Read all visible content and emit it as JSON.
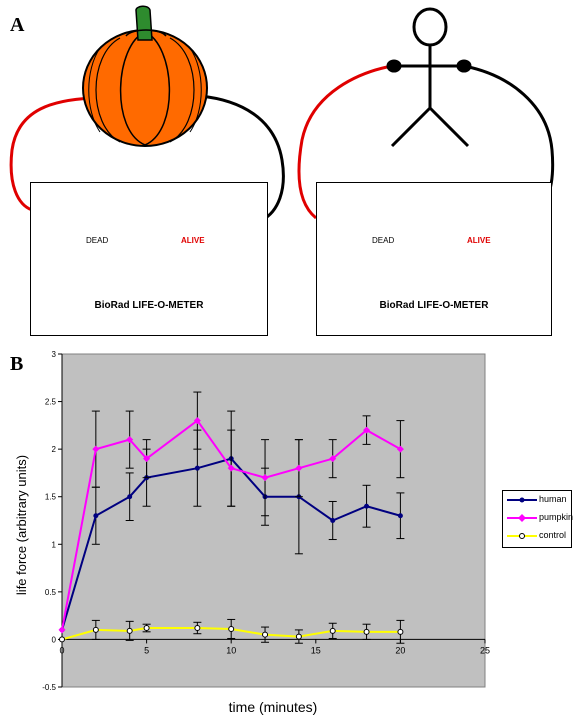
{
  "panels": {
    "a": "A",
    "b": "B"
  },
  "meters": [
    {
      "dead": "DEAD",
      "alive": "ALIVE",
      "caption": "BioRad LIFE-O-METER"
    },
    {
      "dead": "DEAD",
      "alive": "ALIVE",
      "caption": "BioRad LIFE-O-METER"
    }
  ],
  "colors": {
    "human": "#000080",
    "pumpkin": "#ff00ff",
    "control": "#ffff00",
    "plot_bg": "#c0c0c0",
    "wire_red": "#e00000",
    "pumpkin_orange": "#ff6a00"
  },
  "icons": {
    "pumpkin": "pumpkin-icon",
    "stick_figure": "stick-figure-icon"
  },
  "chart_data": {
    "type": "line",
    "xlabel": "time (minutes)",
    "ylabel": "life force (arbitrary units)",
    "xlim": [
      0,
      25
    ],
    "ylim": [
      -0.5,
      3
    ],
    "xticks": [
      "0",
      "5",
      "10",
      "15",
      "20",
      "25"
    ],
    "yticks": [
      "-0.5",
      "0",
      "0.5",
      "1",
      "1.5",
      "2",
      "2.5",
      "3"
    ],
    "grid": false,
    "legend_position": "right",
    "x": [
      0,
      2,
      4,
      5,
      8,
      10,
      12,
      14,
      16,
      18,
      20
    ],
    "series": [
      {
        "name": "human",
        "color": "#000080",
        "marker": "circle",
        "values": [
          0.1,
          1.3,
          1.5,
          1.7,
          1.8,
          1.9,
          1.5,
          1.5,
          1.25,
          1.4,
          1.3
        ],
        "errors": [
          0,
          0.3,
          0.25,
          0.3,
          0.4,
          0.5,
          0.3,
          0.6,
          0.2,
          0.22,
          0.24
        ]
      },
      {
        "name": "pumpkin",
        "color": "#ff00ff",
        "marker": "diamond",
        "values": [
          0.1,
          2.0,
          2.1,
          1.9,
          2.3,
          1.8,
          1.7,
          1.8,
          1.9,
          2.2,
          2.0
        ],
        "errors": [
          0,
          0.4,
          0.3,
          0.2,
          0.3,
          0.4,
          0.4,
          0.3,
          0.2,
          0.15,
          0.3
        ]
      },
      {
        "name": "control",
        "color": "#ffff00",
        "marker": "open-circle",
        "values": [
          0,
          0.1,
          0.09,
          0.12,
          0.12,
          0.11,
          0.05,
          0.03,
          0.09,
          0.08,
          0.08
        ],
        "errors": [
          0,
          0.1,
          0.1,
          0.04,
          0.06,
          0.1,
          0.08,
          0.07,
          0.08,
          0.08,
          0.12
        ]
      }
    ]
  }
}
